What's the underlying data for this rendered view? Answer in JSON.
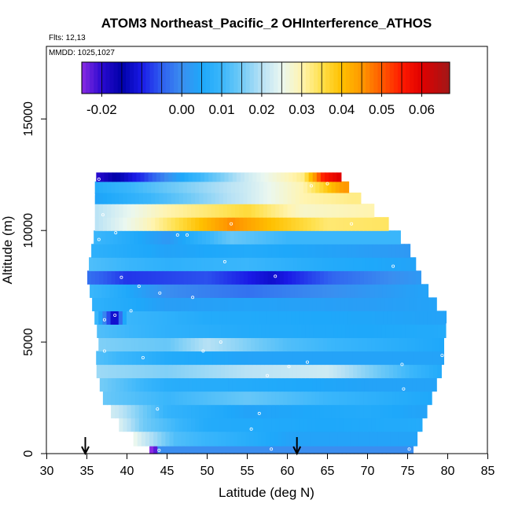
{
  "chart_data": {
    "type": "heatmap",
    "title": "ATOM3 Northeast_Pacific_2 OHInterference_ATHOS",
    "flights_label": "Flts: 12,13",
    "mmdd_label": "MMDD: 1025,1027",
    "xlabel": "Latitude (deg N)",
    "ylabel": "Altitude (m)",
    "xlim": [
      30,
      85
    ],
    "ylim": [
      0,
      17000
    ],
    "x_ticks": [
      "30",
      "35",
      "40",
      "45",
      "50",
      "55",
      "60",
      "65",
      "70",
      "75",
      "80",
      "85"
    ],
    "y_ticks": [
      "0",
      "5000",
      "10000",
      "15000"
    ],
    "colorbar": {
      "range": [
        -0.025,
        0.067
      ],
      "tick_labels": [
        "-0.02",
        "0.00",
        "0.01",
        "0.02",
        "0.03",
        "0.04",
        "0.05",
        "0.06"
      ],
      "tick_values": [
        -0.02,
        0.0,
        0.01,
        0.02,
        0.03,
        0.04,
        0.05,
        0.06
      ],
      "stops": [
        {
          "v": -0.025,
          "c": "#8a2be2"
        },
        {
          "v": -0.02,
          "c": "#2a0ad0"
        },
        {
          "v": -0.015,
          "c": "#0000a8"
        },
        {
          "v": -0.01,
          "c": "#1a1ae6"
        },
        {
          "v": -0.005,
          "c": "#2f5ff0"
        },
        {
          "v": 0.0,
          "c": "#3a8ef0"
        },
        {
          "v": 0.005,
          "c": "#1ea8fa"
        },
        {
          "v": 0.01,
          "c": "#3ab6fb"
        },
        {
          "v": 0.015,
          "c": "#72cbf7"
        },
        {
          "v": 0.02,
          "c": "#b8e2f5"
        },
        {
          "v": 0.025,
          "c": "#eaf7f0"
        },
        {
          "v": 0.03,
          "c": "#fff4b0"
        },
        {
          "v": 0.035,
          "c": "#ffe04a"
        },
        {
          "v": 0.04,
          "c": "#ffc000"
        },
        {
          "v": 0.045,
          "c": "#ff9800"
        },
        {
          "v": 0.05,
          "c": "#ff5a00"
        },
        {
          "v": 0.055,
          "c": "#ff1a00"
        },
        {
          "v": 0.06,
          "c": "#e00000"
        },
        {
          "v": 0.067,
          "c": "#a01818"
        }
      ]
    },
    "arrows_at_latitude": [
      34.8,
      61.2
    ],
    "profile_bounds": [
      {
        "alt": 0,
        "lat_min": 43.5,
        "lat_max": 75.5
      },
      {
        "alt": 1000,
        "lat_min": 39.5,
        "lat_max": 76.5
      },
      {
        "alt": 2500,
        "lat_min": 37.0,
        "lat_max": 78.0
      },
      {
        "alt": 4000,
        "lat_min": 36.0,
        "lat_max": 79.5
      },
      {
        "alt": 5000,
        "lat_min": 36.5,
        "lat_max": 79.5
      },
      {
        "alt": 6000,
        "lat_min": 36.0,
        "lat_max": 80.0
      },
      {
        "alt": 7000,
        "lat_min": 35.5,
        "lat_max": 78.0
      },
      {
        "alt": 8000,
        "lat_min": 35.0,
        "lat_max": 76.5
      },
      {
        "alt": 9000,
        "lat_min": 35.5,
        "lat_max": 75.5
      },
      {
        "alt": 10000,
        "lat_min": 36.0,
        "lat_max": 73.5
      },
      {
        "alt": 11000,
        "lat_min": 36.0,
        "lat_max": 70.5
      },
      {
        "alt": 12000,
        "lat_min": 36.0,
        "lat_max": 67.5
      },
      {
        "alt": 12500,
        "lat_min": 36.2,
        "lat_max": 66.5
      }
    ],
    "altitude_bands": [
      {
        "alt_min": 0,
        "alt_max": 350,
        "values": [
          [
            43.5,
            -0.025
          ],
          [
            44.0,
            0.0
          ],
          [
            60,
            0.0
          ],
          [
            75.5,
            0.0
          ]
        ]
      },
      {
        "alt_min": 350,
        "alt_max": 1000,
        "values": [
          [
            39.5,
            0.03
          ],
          [
            42,
            0.022
          ],
          [
            46,
            0.012
          ],
          [
            60,
            0.004
          ],
          [
            75,
            0.004
          ]
        ]
      },
      {
        "alt_min": 1000,
        "alt_max": 1600,
        "values": [
          [
            38.5,
            0.025
          ],
          [
            42,
            0.015
          ],
          [
            50,
            0.006
          ],
          [
            65,
            0.005
          ],
          [
            76,
            0.006
          ]
        ]
      },
      {
        "alt_min": 1600,
        "alt_max": 2200,
        "values": [
          [
            38.5,
            0.022
          ],
          [
            45,
            0.009
          ],
          [
            55,
            0.004
          ],
          [
            70,
            0.006
          ],
          [
            77,
            0.004
          ]
        ]
      },
      {
        "alt_min": 2200,
        "alt_max": 2800,
        "values": [
          [
            37.5,
            0.014
          ],
          [
            45,
            0.01
          ],
          [
            55,
            0.014
          ],
          [
            65,
            0.01
          ],
          [
            78,
            0.005
          ]
        ]
      },
      {
        "alt_min": 2800,
        "alt_max": 3400,
        "values": [
          [
            37.0,
            0.015
          ],
          [
            45,
            0.007
          ],
          [
            55,
            0.006
          ],
          [
            70,
            0.004
          ],
          [
            78,
            0.004
          ]
        ]
      },
      {
        "alt_min": 3400,
        "alt_max": 4000,
        "values": [
          [
            36.5,
            0.018
          ],
          [
            45,
            0.016
          ],
          [
            55,
            0.02
          ],
          [
            65,
            0.022
          ],
          [
            79,
            0.006
          ]
        ]
      },
      {
        "alt_min": 4000,
        "alt_max": 4600,
        "values": [
          [
            36.5,
            0.012
          ],
          [
            45,
            0.006
          ],
          [
            55,
            0.004
          ],
          [
            70,
            0.004
          ],
          [
            79.5,
            0.004
          ]
        ]
      },
      {
        "alt_min": 4600,
        "alt_max": 5200,
        "values": [
          [
            36.5,
            0.016
          ],
          [
            45,
            0.014
          ],
          [
            50,
            0.02
          ],
          [
            60,
            0.012
          ],
          [
            79.5,
            0.005
          ]
        ]
      },
      {
        "alt_min": 5200,
        "alt_max": 5800,
        "values": [
          [
            36.5,
            0.012
          ],
          [
            45,
            0.008
          ],
          [
            55,
            0.006
          ],
          [
            70,
            0.005
          ],
          [
            80,
            0.006
          ]
        ]
      },
      {
        "alt_min": 5800,
        "alt_max": 6400,
        "values": [
          [
            36.0,
            0.012
          ],
          [
            38.5,
            -0.015
          ],
          [
            40,
            0.01
          ],
          [
            50,
            0.006
          ],
          [
            78,
            0.004
          ]
        ]
      },
      {
        "alt_min": 6400,
        "alt_max": 7000,
        "values": [
          [
            36.0,
            0.008
          ],
          [
            45,
            0.003
          ],
          [
            55,
            0.004
          ],
          [
            70,
            0.003
          ],
          [
            78,
            0.004
          ]
        ]
      },
      {
        "alt_min": 7000,
        "alt_max": 7600,
        "values": [
          [
            35.5,
            0.01
          ],
          [
            45,
            0.0
          ],
          [
            55,
            -0.003
          ],
          [
            65,
            0.0
          ],
          [
            77,
            0.004
          ]
        ]
      },
      {
        "alt_min": 7600,
        "alt_max": 8200,
        "values": [
          [
            35.0,
            -0.003
          ],
          [
            40,
            -0.008
          ],
          [
            50,
            -0.006
          ],
          [
            58,
            -0.012
          ],
          [
            66,
            -0.004
          ],
          [
            76.5,
            0.002
          ]
        ]
      },
      {
        "alt_min": 8200,
        "alt_max": 8800,
        "values": [
          [
            35.0,
            0.012
          ],
          [
            45,
            0.008
          ],
          [
            55,
            0.01
          ],
          [
            65,
            0.006
          ],
          [
            76,
            0.004
          ]
        ]
      },
      {
        "alt_min": 8800,
        "alt_max": 9400,
        "values": [
          [
            35.5,
            0.008
          ],
          [
            45,
            0.004
          ],
          [
            55,
            0.006
          ],
          [
            65,
            0.004
          ],
          [
            75.5,
            0.002
          ]
        ]
      },
      {
        "alt_min": 9400,
        "alt_max": 10000,
        "values": [
          [
            36.0,
            0.01
          ],
          [
            45,
            0.002
          ],
          [
            53,
            0.014
          ],
          [
            60,
            0.01
          ],
          [
            74,
            0.01
          ]
        ]
      },
      {
        "alt_min": 10000,
        "alt_max": 10600,
        "values": [
          [
            36.0,
            0.02
          ],
          [
            42,
            0.028
          ],
          [
            48,
            0.038
          ],
          [
            53,
            0.046
          ],
          [
            58,
            0.04
          ],
          [
            65,
            0.033
          ],
          [
            73.5,
            0.034
          ]
        ]
      },
      {
        "alt_min": 10600,
        "alt_max": 11200,
        "values": [
          [
            36.0,
            0.02
          ],
          [
            45,
            0.03
          ],
          [
            55,
            0.036
          ],
          [
            62,
            0.028
          ],
          [
            70.5,
            0.03
          ]
        ]
      },
      {
        "alt_min": 11200,
        "alt_max": 11700,
        "values": [
          [
            36.0,
            0.004
          ],
          [
            45,
            0.012
          ],
          [
            55,
            0.022
          ],
          [
            62,
            0.03
          ],
          [
            68,
            0.032
          ]
        ]
      },
      {
        "alt_min": 11700,
        "alt_max": 12200,
        "values": [
          [
            36.0,
            0.006
          ],
          [
            45,
            0.014
          ],
          [
            55,
            0.022
          ],
          [
            62,
            0.03
          ],
          [
            67,
            0.045
          ]
        ]
      },
      {
        "alt_min": 12200,
        "alt_max": 12600,
        "values": [
          [
            36.2,
            -0.02
          ],
          [
            42,
            -0.008
          ],
          [
            48,
            0.008
          ],
          [
            55,
            0.022
          ],
          [
            62,
            0.032
          ],
          [
            64.5,
            0.055
          ],
          [
            66.5,
            0.06
          ]
        ]
      }
    ],
    "sample_points": [
      [
        36.5,
        12300
      ],
      [
        35.8,
        11600
      ],
      [
        37.0,
        10700
      ],
      [
        36.5,
        9600
      ],
      [
        38.6,
        9900
      ],
      [
        46.3,
        9800
      ],
      [
        47.5,
        9800
      ],
      [
        52.2,
        8600
      ],
      [
        53.0,
        10300
      ],
      [
        63.0,
        12000
      ],
      [
        65.0,
        12100
      ],
      [
        68.0,
        10300
      ],
      [
        58.5,
        7950
      ],
      [
        39.3,
        7900
      ],
      [
        41.5,
        7500
      ],
      [
        48.2,
        7000
      ],
      [
        73.2,
        8400
      ],
      [
        40.5,
        6400
      ],
      [
        38.5,
        6200
      ],
      [
        37.2,
        6000
      ],
      [
        44.1,
        7200
      ],
      [
        51.7,
        5000
      ],
      [
        49.5,
        4600
      ],
      [
        42.0,
        4300
      ],
      [
        37.2,
        4600
      ],
      [
        57.5,
        3500
      ],
      [
        62.5,
        4100
      ],
      [
        60.2,
        3900
      ],
      [
        74.3,
        4000
      ],
      [
        79.3,
        4400
      ],
      [
        80.0,
        5800
      ],
      [
        74.5,
        2900
      ],
      [
        43.8,
        2000
      ],
      [
        56.5,
        1800
      ],
      [
        55.5,
        1100
      ],
      [
        58.0,
        200
      ],
      [
        44.0,
        150
      ],
      [
        75.2,
        200
      ]
    ]
  }
}
